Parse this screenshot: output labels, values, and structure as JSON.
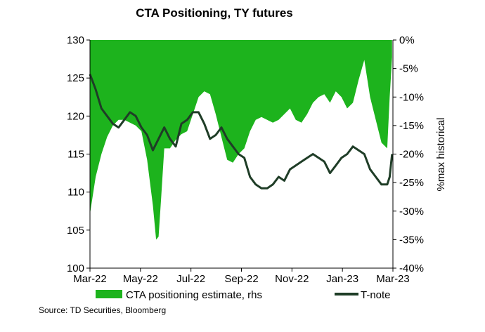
{
  "chart_data": {
    "type": "area+line",
    "title": "CTA Positioning, TY futures",
    "xlabel": "",
    "ylabel_left": "",
    "ylabel_right": "%max historical",
    "x_tick_labels": [
      "Mar-22",
      "May-22",
      "Jul-22",
      "Sep-22",
      "Nov-22",
      "Jan-23",
      "Mar-23"
    ],
    "y_left": {
      "min": 100,
      "max": 130,
      "ticks": [
        "100",
        "105",
        "110",
        "115",
        "120",
        "125",
        "130"
      ]
    },
    "y_right": {
      "min": -40,
      "max": 0,
      "ticks": [
        "-40%",
        "-35%",
        "-30%",
        "-25%",
        "-20%",
        "-15%",
        "-10%",
        "-5%",
        "0%"
      ]
    },
    "series": [
      {
        "name": "CTA positioning estimate, rhs",
        "axis": "right",
        "type": "area",
        "color": "#1db31d",
        "x": [
          "2022-03-01",
          "2022-03-08",
          "2022-03-15",
          "2022-03-22",
          "2022-03-29",
          "2022-04-05",
          "2022-04-12",
          "2022-04-19",
          "2022-04-26",
          "2022-05-03",
          "2022-05-10",
          "2022-05-17",
          "2022-05-21",
          "2022-05-24",
          "2022-05-27",
          "2022-05-31",
          "2022-06-07",
          "2022-06-14",
          "2022-06-21",
          "2022-06-28",
          "2022-07-05",
          "2022-07-12",
          "2022-07-19",
          "2022-07-26",
          "2022-08-02",
          "2022-08-09",
          "2022-08-16",
          "2022-08-23",
          "2022-08-30",
          "2022-09-06",
          "2022-09-13",
          "2022-09-20",
          "2022-09-27",
          "2022-10-04",
          "2022-10-11",
          "2022-10-18",
          "2022-10-25",
          "2022-11-01",
          "2022-11-08",
          "2022-11-15",
          "2022-11-22",
          "2022-11-29",
          "2022-12-06",
          "2022-12-13",
          "2022-12-20",
          "2022-12-27",
          "2023-01-03",
          "2023-01-10",
          "2023-01-17",
          "2023-01-24",
          "2023-01-31",
          "2023-02-07",
          "2023-02-14",
          "2023-02-21",
          "2023-02-28",
          "2023-03-03",
          "2023-03-06"
        ],
        "values": [
          -30.5,
          -24,
          -20,
          -17,
          -15,
          -14,
          -14,
          -14.5,
          -15,
          -16,
          -21,
          -29,
          -35,
          -34.5,
          -28,
          -19,
          -19,
          -17.5,
          -16.5,
          -16,
          -13,
          -10,
          -9,
          -9.5,
          -13,
          -17,
          -21,
          -21.5,
          -20,
          -19,
          -16,
          -14,
          -13.5,
          -14,
          -14.5,
          -14,
          -13,
          -12,
          -14,
          -14.5,
          -13,
          -11,
          -10,
          -9.5,
          -11,
          -9,
          -10,
          -12,
          -11,
          -7,
          -3.5,
          -10,
          -14,
          -18,
          -19,
          -10,
          -3
        ]
      },
      {
        "name": "T-note",
        "axis": "left",
        "type": "line",
        "color": "#1f3d27",
        "x": [
          "2022-03-01",
          "2022-03-08",
          "2022-03-15",
          "2022-03-22",
          "2022-03-29",
          "2022-04-05",
          "2022-04-12",
          "2022-04-19",
          "2022-04-26",
          "2022-05-03",
          "2022-05-10",
          "2022-05-17",
          "2022-05-24",
          "2022-05-31",
          "2022-06-07",
          "2022-06-14",
          "2022-06-21",
          "2022-06-28",
          "2022-07-05",
          "2022-07-12",
          "2022-07-19",
          "2022-07-26",
          "2022-08-02",
          "2022-08-09",
          "2022-08-16",
          "2022-08-23",
          "2022-08-30",
          "2022-09-06",
          "2022-09-13",
          "2022-09-20",
          "2022-09-27",
          "2022-10-04",
          "2022-10-11",
          "2022-10-18",
          "2022-10-25",
          "2022-11-01",
          "2022-11-08",
          "2022-11-15",
          "2022-11-22",
          "2022-11-29",
          "2022-12-06",
          "2022-12-13",
          "2022-12-20",
          "2022-12-27",
          "2023-01-03",
          "2023-01-10",
          "2023-01-17",
          "2023-01-24",
          "2023-01-31",
          "2023-02-07",
          "2023-02-14",
          "2023-02-21",
          "2023-02-28",
          "2023-03-03",
          "2023-03-06"
        ],
        "values": [
          125.5,
          123.5,
          121,
          120,
          119,
          118.5,
          119.5,
          120.5,
          120,
          118.5,
          117.5,
          115.5,
          117,
          118.5,
          117,
          116,
          119,
          119.5,
          120.5,
          120.5,
          119,
          117,
          117.5,
          118.5,
          117,
          116,
          115,
          114.5,
          112,
          111,
          110.5,
          110.5,
          111,
          112,
          111.5,
          113,
          113.5,
          114,
          114.5,
          115,
          114.5,
          114,
          112.5,
          113.5,
          114.5,
          115,
          116,
          115.5,
          115,
          113,
          112,
          111,
          111,
          112,
          115
        ]
      }
    ],
    "legend_position": "bottom",
    "grid": false
  },
  "legend": {
    "area_label": "CTA positioning estimate, rhs",
    "line_label": "T-note"
  },
  "source": "Source: TD Securities, Bloomberg"
}
